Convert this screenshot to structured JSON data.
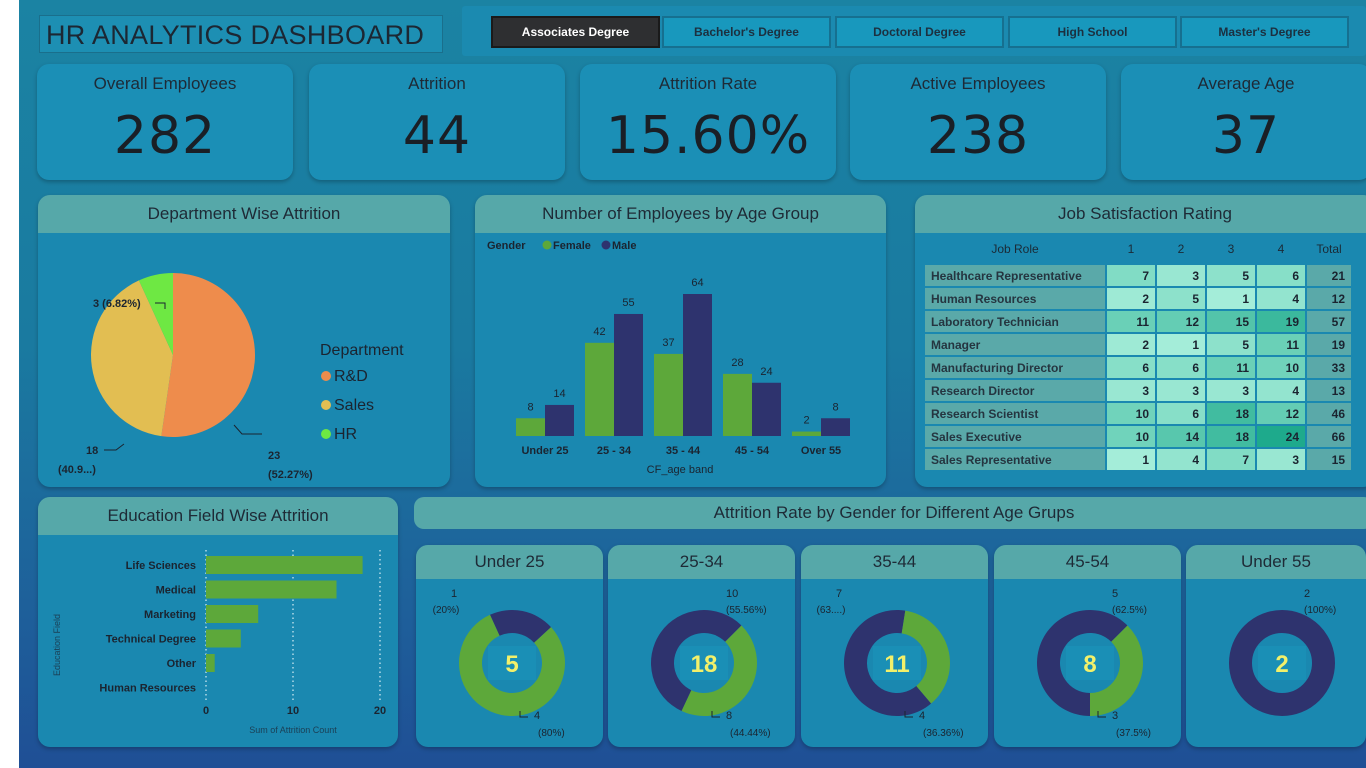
{
  "header": {
    "title": "HR ANALYTICS DASHBOARD"
  },
  "slicer": {
    "options": [
      "Associates Degree",
      "Bachelor's Degree",
      "Doctoral Degree",
      "High School",
      "Master's Degree"
    ],
    "selected": "Associates Degree"
  },
  "kpis": [
    {
      "label": "Overall Employees",
      "value": "282"
    },
    {
      "label": "Attrition",
      "value": "44"
    },
    {
      "label": "Attrition Rate",
      "value": "15.60%"
    },
    {
      "label": "Active Employees",
      "value": "238"
    },
    {
      "label": "Average Age",
      "value": "37"
    }
  ],
  "colors": {
    "female": "#5da83a",
    "male": "#2e336e",
    "rnd": "#ee8c4c",
    "sales": "#e2be52",
    "hr": "#6ee843",
    "panel_head": "#56a8a9",
    "donut_center_text": "#f2f06a"
  },
  "chart_data": [
    {
      "id": "department",
      "type": "pie",
      "title": "Department Wise Attrition",
      "legend_title": "Department",
      "legend_position": "right",
      "slices": [
        {
          "name": "R&D",
          "value": 23,
          "label": "23",
          "pct_label": "(52.27%)"
        },
        {
          "name": "Sales",
          "value": 18,
          "label": "18",
          "pct_label": "(40.9...)"
        },
        {
          "name": "HR",
          "value": 3,
          "label": "3 (6.82%)",
          "pct_label": ""
        }
      ]
    },
    {
      "id": "age_group",
      "type": "bar",
      "title": "Number of Employees by Age Group",
      "legend_title": "Gender",
      "legend_position": "top-left",
      "xlabel": "CF_age band",
      "categories": [
        "Under 25",
        "25 - 34",
        "35 - 44",
        "45 - 54",
        "Over 55"
      ],
      "series": [
        {
          "name": "Female",
          "values": [
            8,
            42,
            37,
            28,
            2
          ]
        },
        {
          "name": "Male",
          "values": [
            14,
            55,
            64,
            24,
            8
          ]
        }
      ],
      "ylim": [
        0,
        64
      ]
    },
    {
      "id": "job_satisfaction",
      "type": "table",
      "title": "Job Satisfaction Rating",
      "columns": [
        "Job Role",
        "1",
        "2",
        "3",
        "4",
        "Total"
      ],
      "rows": [
        {
          "role": "Healthcare Representative",
          "values": [
            7,
            3,
            5,
            6
          ],
          "total": 21
        },
        {
          "role": "Human Resources",
          "values": [
            2,
            5,
            1,
            4
          ],
          "total": 12
        },
        {
          "role": "Laboratory Technician",
          "values": [
            11,
            12,
            15,
            19
          ],
          "total": 57
        },
        {
          "role": "Manager",
          "values": [
            2,
            1,
            5,
            11
          ],
          "total": 19
        },
        {
          "role": "Manufacturing Director",
          "values": [
            6,
            6,
            11,
            10
          ],
          "total": 33
        },
        {
          "role": "Research Director",
          "values": [
            3,
            3,
            3,
            4
          ],
          "total": 13
        },
        {
          "role": "Research Scientist",
          "values": [
            10,
            6,
            18,
            12
          ],
          "total": 46
        },
        {
          "role": "Sales Executive",
          "values": [
            10,
            14,
            18,
            24
          ],
          "total": 66
        },
        {
          "role": "Sales Representative",
          "values": [
            1,
            4,
            7,
            3
          ],
          "total": 15
        }
      ]
    },
    {
      "id": "education_field",
      "type": "bar",
      "orientation": "horizontal",
      "title": "Education Field Wise Attrition",
      "xlabel": "Sum of Attrition Count",
      "ylabel": "Education Field",
      "categories": [
        "Life Sciences",
        "Medical",
        "Marketing",
        "Technical Degree",
        "Other",
        "Human Resources"
      ],
      "values": [
        18,
        15,
        6,
        4,
        1,
        0
      ],
      "xlim": [
        0,
        20
      ],
      "xticks": [
        "0",
        "10",
        "20"
      ],
      "grid": true
    },
    {
      "id": "gender_age_donuts",
      "type": "pie",
      "title": "Attrition Rate by Gender for Different Age Grups",
      "donuts": [
        {
          "title": "Under 25",
          "total": "5",
          "male": 1,
          "female": 4,
          "male_label": "1",
          "male_pct": "(20%)",
          "female_label": "4",
          "female_pct": "(80%)"
        },
        {
          "title": "25-34",
          "total": "18",
          "male": 10,
          "female": 8,
          "male_label": "10",
          "male_pct": "(55.56%)",
          "female_label": "8",
          "female_pct": "(44.44%)"
        },
        {
          "title": "35-44",
          "total": "11",
          "male": 7,
          "female": 4,
          "male_label": "7",
          "male_pct": "(63....)",
          "female_label": "4",
          "female_pct": "(36.36%)"
        },
        {
          "title": "45-54",
          "total": "8",
          "male": 5,
          "female": 3,
          "male_label": "5",
          "male_pct": "(62.5%)",
          "female_label": "3",
          "female_pct": "(37.5%)"
        },
        {
          "title": "Under 55",
          "total": "2",
          "male": 2,
          "female": 0,
          "male_label": "2",
          "male_pct": "(100%)",
          "female_label": "",
          "female_pct": ""
        }
      ]
    }
  ]
}
